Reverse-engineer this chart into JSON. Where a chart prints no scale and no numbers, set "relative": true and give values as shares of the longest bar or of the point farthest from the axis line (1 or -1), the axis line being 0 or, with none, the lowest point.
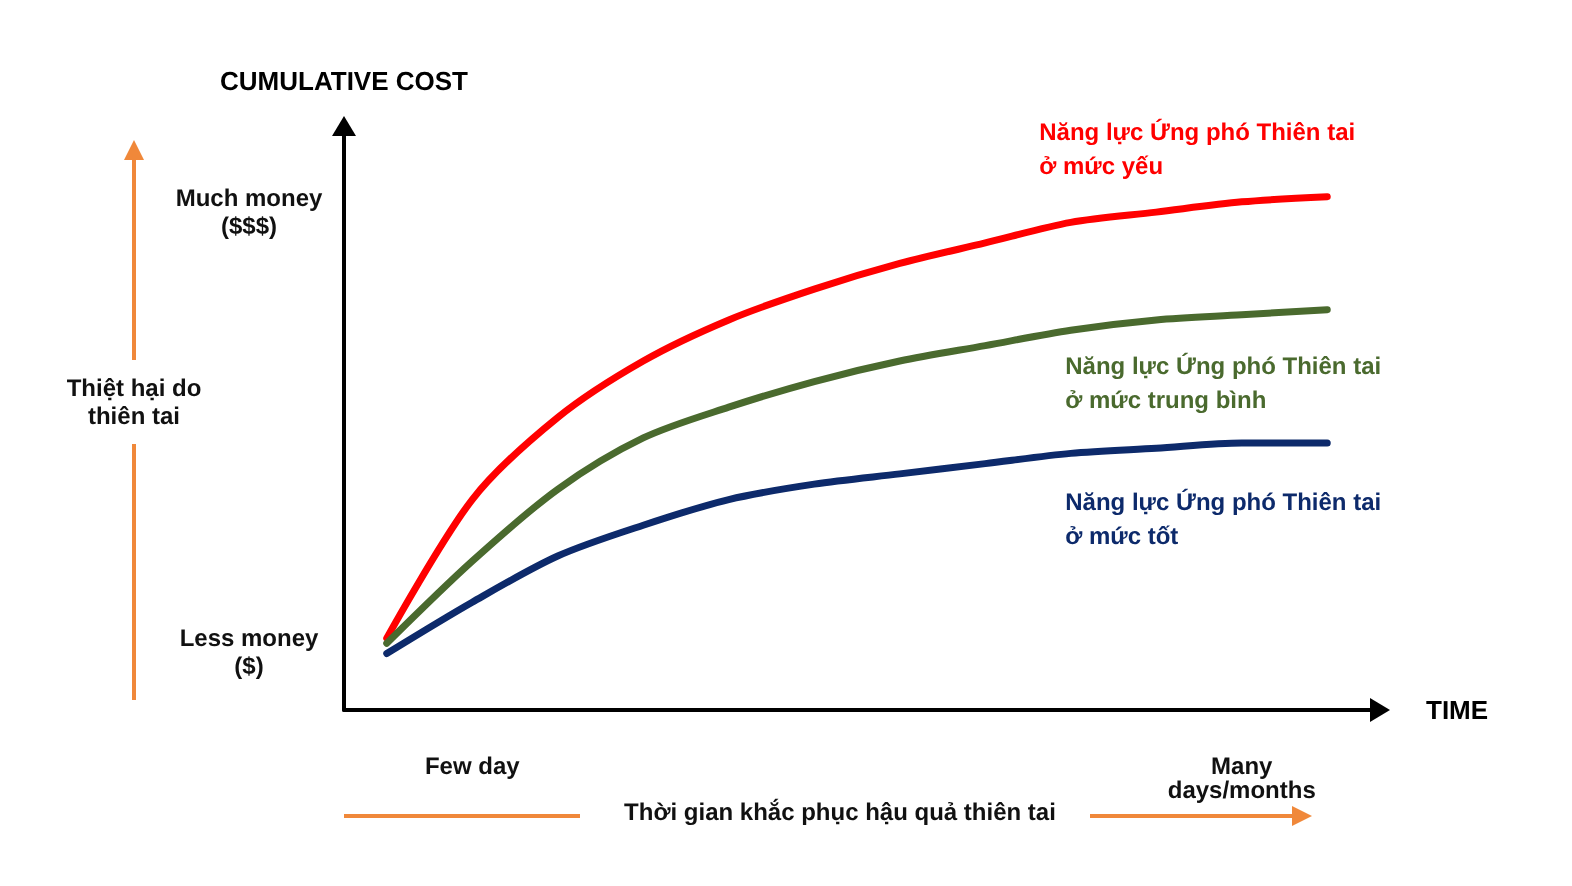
{
  "chart_data": {
    "type": "line",
    "relative": true,
    "xlabel": "TIME",
    "ylabel": "CUMULATIVE COST",
    "categories": [
      null,
      "Few day",
      null,
      null,
      null,
      null,
      null,
      null,
      null,
      null,
      "Many days/months",
      null
    ],
    "series": [
      {
        "name": "Năng lực Ứng phó Thiên tai ở mức yếu",
        "color": "#ff0000",
        "values": [
          0.14,
          0.41,
          0.57,
          0.68,
          0.76,
          0.82,
          0.87,
          0.91,
          0.95,
          0.97,
          0.99,
          1
        ]
      },
      {
        "name": "Năng lực Ứng phó Thiên tai ở mức trung bình",
        "color": "#4a6a2e",
        "values": [
          0.13,
          0.29,
          0.43,
          0.53,
          0.59,
          0.64,
          0.68,
          0.71,
          0.74,
          0.76,
          0.77,
          0.78
        ]
      },
      {
        "name": "Năng lực Ứng phó Thiên tai ở mức tốt",
        "color": "#0d2a6b",
        "values": [
          0.11,
          0.21,
          0.3,
          0.36,
          0.41,
          0.44,
          0.46,
          0.48,
          0.5,
          0.51,
          0.52,
          0.52
        ]
      }
    ],
    "annotations": [
      "Much money ($$$)",
      "Less money ($)",
      "Thiệt hại do thiên tai",
      "Thời gian khắc phục hậu quả thiên tai"
    ],
    "legend": false,
    "grid": false,
    "marker": "none",
    "line_style": "solid"
  }
}
